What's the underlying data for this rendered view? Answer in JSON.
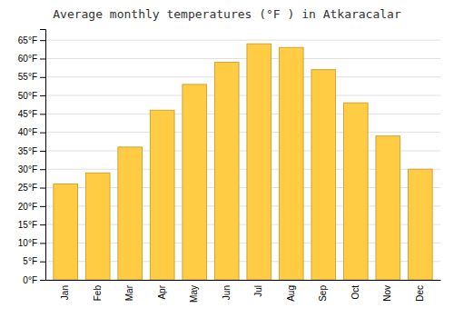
{
  "chart_data": {
    "type": "bar",
    "title": "Average monthly temperatures (°F ) in Atkaracalar",
    "categories": [
      "Jan",
      "Feb",
      "Mar",
      "Apr",
      "May",
      "Jun",
      "Jul",
      "Aug",
      "Sep",
      "Oct",
      "Nov",
      "Dec"
    ],
    "values": [
      26,
      29,
      36,
      46,
      53,
      59,
      64,
      63,
      57,
      48,
      39,
      30
    ],
    "color": "#FFCC44",
    "ylim": [
      0,
      68
    ],
    "yticks": [
      {
        "value": 0,
        "label": "0°F"
      },
      {
        "value": 5,
        "label": "5°F"
      },
      {
        "value": 10,
        "label": "10°F"
      },
      {
        "value": 15,
        "label": "15°F"
      },
      {
        "value": 20,
        "label": "20°F"
      },
      {
        "value": 25,
        "label": "25°F"
      },
      {
        "value": 30,
        "label": "30°F"
      },
      {
        "value": 35,
        "label": "35°F"
      },
      {
        "value": 40,
        "label": "40°F"
      },
      {
        "value": 45,
        "label": "45°F"
      },
      {
        "value": 50,
        "label": "50°F"
      },
      {
        "value": 55,
        "label": "55°F"
      },
      {
        "value": 60,
        "label": "60°F"
      },
      {
        "value": 65,
        "label": "65°F"
      }
    ],
    "grid": true
  }
}
